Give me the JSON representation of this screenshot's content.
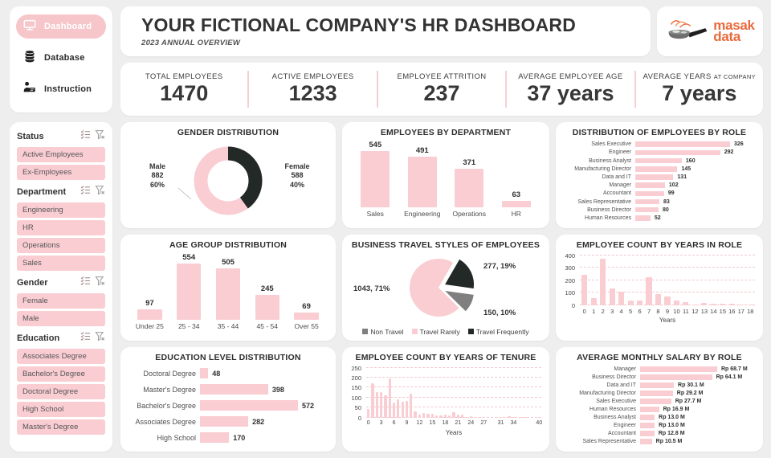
{
  "header": {
    "title": "YOUR FICTIONAL COMPANY'S HR DASHBOARD",
    "subtitle": "2023 ANNUAL OVERVIEW",
    "logo": {
      "line1": "masak",
      "line2": "data"
    }
  },
  "sidebar": {
    "nav": [
      {
        "label": "Dashboard",
        "icon": "monitor-icon",
        "active": true
      },
      {
        "label": "Database",
        "icon": "database-icon",
        "active": false
      },
      {
        "label": "Instruction",
        "icon": "presenter-icon",
        "active": false
      }
    ],
    "filters": [
      {
        "title": "Status",
        "options": [
          "Active Employees",
          "Ex-Employees"
        ]
      },
      {
        "title": "Department",
        "options": [
          "Engineering",
          "HR",
          "Operations",
          "Sales"
        ]
      },
      {
        "title": "Gender",
        "options": [
          "Female",
          "Male"
        ]
      },
      {
        "title": "Education",
        "options": [
          "Associates Degree",
          "Bachelor's Degree",
          "Doctoral Degree",
          "High School",
          "Master's Degree"
        ]
      }
    ]
  },
  "kpis": [
    {
      "label": "TOTAL EMPLOYEES",
      "value": "1470"
    },
    {
      "label": "ACTIVE EMPLOYEES",
      "value": "1233"
    },
    {
      "label": "EMPLOYEE ATTRITION",
      "value": "237"
    },
    {
      "label": "AVERAGE EMPLOYEE AGE",
      "value": "37 years"
    },
    {
      "label": "AVERAGE YEARS",
      "label_small": "AT COMPANY",
      "value": "7 years"
    }
  ],
  "colors": {
    "pink": "#f9cdd2",
    "dark": "#222927",
    "gray": "#7f7f7f",
    "grid_pink": "#f3c9cd",
    "logo_orange": "#e96a3c"
  },
  "chart_data": [
    {
      "id": "gender",
      "type": "donut",
      "title": "GENDER DISTRIBUTION",
      "slices": [
        {
          "label": "Male",
          "value": 882,
          "pct": "60%",
          "color": "pink"
        },
        {
          "label": "Female",
          "value": 588,
          "pct": "40%",
          "color": "dark"
        }
      ]
    },
    {
      "id": "dept",
      "type": "column",
      "title": "EMPLOYEES BY DEPARTMENT",
      "categories": [
        "Sales",
        "Engineering",
        "Operations",
        "HR"
      ],
      "values": [
        545,
        491,
        371,
        63
      ]
    },
    {
      "id": "role",
      "type": "hbar",
      "title": "DISTRIBUTION OF EMPLOYEES BY ROLE",
      "categories": [
        "Sales Executive",
        "Engineer",
        "Business Analyst",
        "Manufacturing Director",
        "Data and IT",
        "Manager",
        "Accountant",
        "Sales Representative",
        "Business Director",
        "Human Resources"
      ],
      "values": [
        326,
        292,
        160,
        145,
        131,
        102,
        99,
        83,
        80,
        52
      ]
    },
    {
      "id": "age",
      "type": "column",
      "title": "AGE GROUP DISTRIBUTION",
      "categories": [
        "Under 25",
        "25 - 34",
        "35 - 44",
        "45 - 54",
        "Over 55"
      ],
      "values": [
        97,
        554,
        505,
        245,
        69
      ]
    },
    {
      "id": "travel",
      "type": "pie",
      "title": "BUSINESS TRAVEL STYLES OF EMPLOYEES",
      "slices": [
        {
          "label": "Travel Frequently",
          "value": 277,
          "pct": "19%",
          "color": "dark",
          "label_text": "277, 19%"
        },
        {
          "label": "Non Travel",
          "value": 150,
          "pct": "10%",
          "color": "gray",
          "label_text": "150, 10%"
        },
        {
          "label": "Travel Rarely",
          "value": 1043,
          "pct": "71%",
          "color": "pink",
          "label_text": "1043, 71%"
        }
      ],
      "legend": [
        {
          "label": "Non Travel",
          "color": "gray"
        },
        {
          "label": "Travel Rarely",
          "color": "pink"
        },
        {
          "label": "Travel Frequently",
          "color": "dark"
        }
      ]
    },
    {
      "id": "yearsrole",
      "type": "hist",
      "title": "EMPLOYEE COUNT BY YEARS IN ROLE",
      "xlabel": "Years",
      "values": [
        244,
        57,
        372,
        135,
        104,
        36,
        37,
        222,
        89,
        67,
        34,
        22,
        7,
        14,
        9,
        11,
        8,
        4,
        2
      ],
      "yticks": [
        0,
        100,
        200,
        300,
        400
      ],
      "ymax": 400,
      "xticks": [
        0,
        1,
        2,
        3,
        4,
        5,
        6,
        7,
        8,
        9,
        10,
        11,
        12,
        13,
        14,
        15,
        16,
        17,
        18
      ]
    },
    {
      "id": "education",
      "type": "hbar",
      "title": "EDUCATION LEVEL DISTRIBUTION",
      "categories": [
        "Doctoral Degree",
        "Master's Degree",
        "Bachelor's Degree",
        "Associates Degree",
        "High School"
      ],
      "values": [
        48,
        398,
        572,
        282,
        170
      ]
    },
    {
      "id": "tenure",
      "type": "hist",
      "title": "EMPLOYEE COUNT BY YEARS OF TENURE",
      "xlabel": "Years",
      "values": [
        44,
        171,
        127,
        128,
        110,
        196,
        76,
        90,
        80,
        82,
        120,
        32,
        14,
        24,
        18,
        20,
        12,
        9,
        13,
        11,
        27,
        14,
        15,
        2,
        6,
        4,
        4,
        2,
        0,
        2,
        1,
        3,
        3,
        5,
        1,
        0,
        2,
        1,
        0,
        0,
        1
      ],
      "yticks": [
        0,
        50,
        100,
        150,
        200,
        250
      ],
      "ymax": 250,
      "xticks": [
        0,
        3,
        6,
        9,
        12,
        15,
        18,
        21,
        24,
        27,
        31,
        34,
        40
      ]
    },
    {
      "id": "salary",
      "type": "hbar",
      "title": "AVERAGE MONTHLY SALARY BY ROLE",
      "categories": [
        "Manager",
        "Business Director",
        "Data and IT",
        "Manufacturing Director",
        "Sales Executive",
        "Human Resources",
        "Business Analyst",
        "Engineer",
        "Accountant",
        "Sales Representative"
      ],
      "values": [
        68.7,
        64.1,
        30.1,
        29.2,
        27.7,
        16.9,
        13.0,
        13.0,
        12.8,
        10.5
      ],
      "value_labels": [
        "Rp 68.7 M",
        "Rp 64.1 M",
        "Rp 30.1 M",
        "Rp 29.2 M",
        "Rp 27.7 M",
        "Rp 16.9 M",
        "Rp 13.0 M",
        "Rp 13.0 M",
        "Rp 12.8 M",
        "Rp 10.5 M"
      ]
    }
  ]
}
